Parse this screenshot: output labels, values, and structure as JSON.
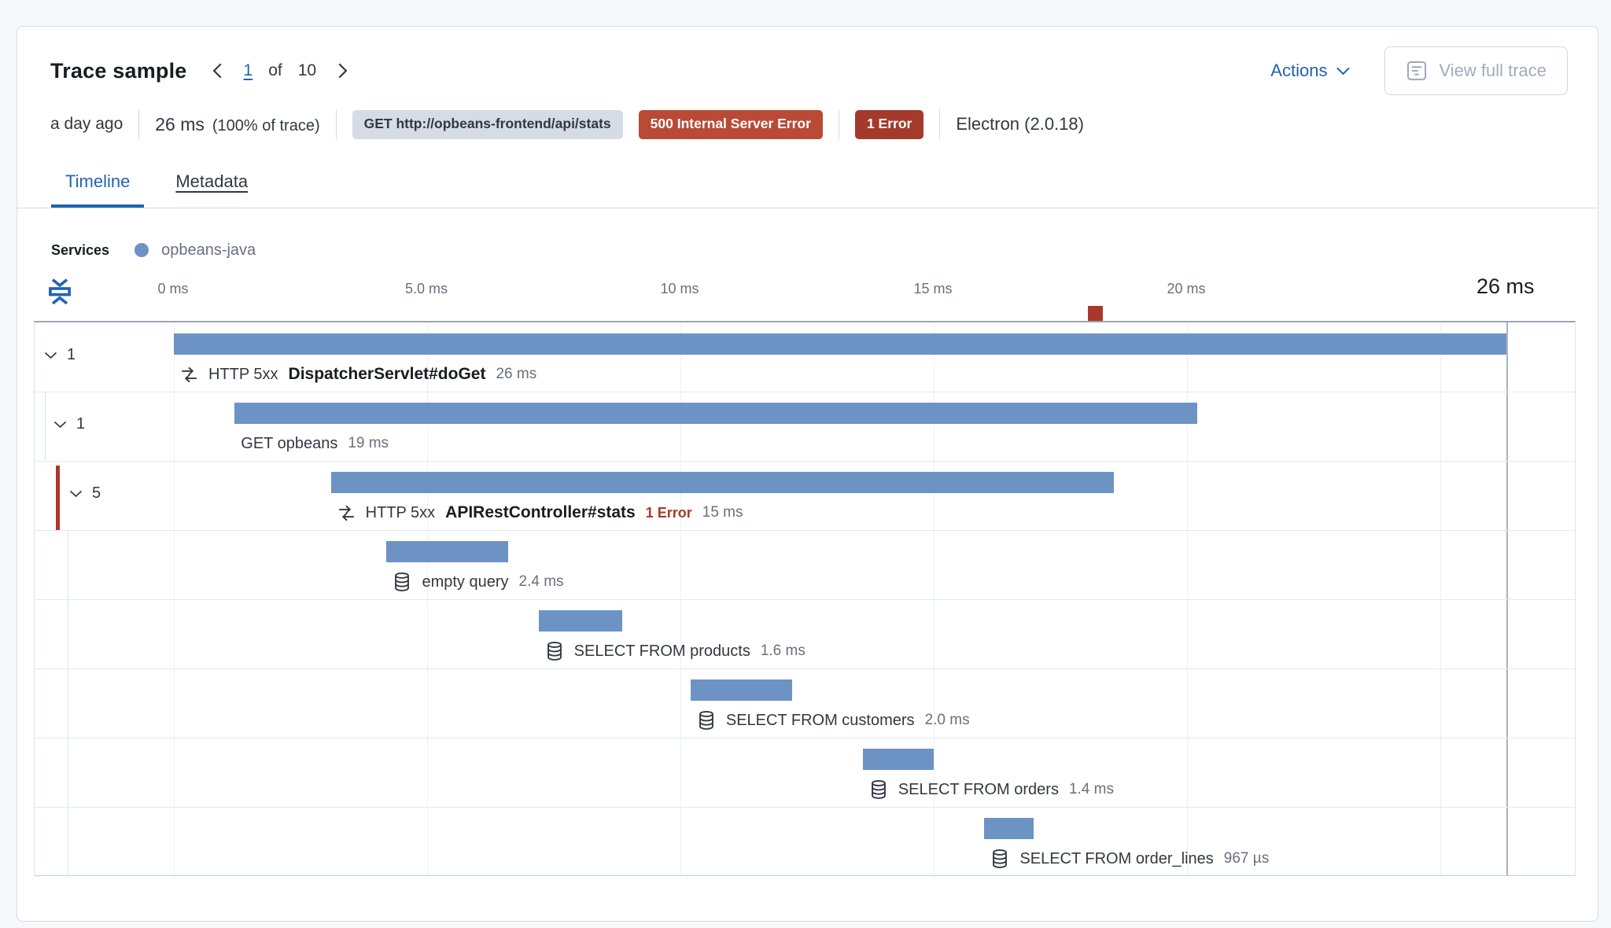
{
  "colors": {
    "accent": "#2263b1",
    "vis_blue": "#6d93c4",
    "badge_gray_bg": "#d6dce6",
    "badge_red": "#b84a36",
    "badge_dark_red": "#a5392c",
    "error_red": "#aa372b",
    "text": "#343741",
    "title": "#1a1c21",
    "subdued": "#69707d",
    "disabled": "#a2abba",
    "border": "#d3dae6",
    "separator": "#e4e9f0",
    "gridline": "#edf0f5",
    "chart_top_border": "#9aa5b6",
    "endline": "#aab3c1",
    "page_bg": "#f7f8fb"
  },
  "header": {
    "title": "Trace sample",
    "pager": {
      "page": "1",
      "of_label": "of",
      "total": "10"
    },
    "actions_label": "Actions",
    "view_full_trace_label": "View full trace"
  },
  "summary": {
    "time_ago": "a day ago",
    "duration": "26 ms",
    "duration_pct": "(100% of trace)",
    "url_badge": "GET http://opbeans-frontend/api/stats",
    "status_badge": "500 Internal Server Error",
    "error_badge": "1 Error",
    "agent": "Electron (2.0.18)"
  },
  "tabs": {
    "timeline": "Timeline",
    "metadata": "Metadata"
  },
  "legend": {
    "label": "Services",
    "service": "opbeans-java"
  },
  "chart_data": {
    "type": "waterfall",
    "unit": "ms",
    "axis_ticks": [
      {
        "ms": 0,
        "label": "0 ms"
      },
      {
        "ms": 5,
        "label": "5.0 ms"
      },
      {
        "ms": 10,
        "label": "10 ms"
      },
      {
        "ms": 15,
        "label": "15 ms"
      },
      {
        "ms": 20,
        "label": "20 ms"
      },
      {
        "ms": 25,
        "label": ""
      }
    ],
    "total_ms": 26.3,
    "total_label": "26 ms",
    "error_marker_ms": 18.2,
    "rows": [
      {
        "level": 0,
        "toggle": "1",
        "icon": "merge",
        "prefix": "HTTP 5xx",
        "name": "DispatcherServlet#doGet",
        "bold": true,
        "duration": "26 ms",
        "start_ms": 0,
        "duration_ms": 26.3
      },
      {
        "level": 1,
        "toggle": "1",
        "icon": null,
        "prefix": null,
        "name": "GET opbeans",
        "bold": false,
        "duration": "19 ms",
        "start_ms": 1.2,
        "duration_ms": 19.0
      },
      {
        "level": 2,
        "toggle": "5",
        "icon": "merge",
        "prefix": "HTTP 5xx",
        "name": "APIRestController#stats",
        "bold": true,
        "duration": "15 ms",
        "start_ms": 3.1,
        "duration_ms": 15.45,
        "error_label": "1 Error"
      },
      {
        "level": 3,
        "toggle": null,
        "icon": "database",
        "prefix": null,
        "name": "empty query",
        "bold": false,
        "duration": "2.4 ms",
        "start_ms": 4.2,
        "duration_ms": 2.4
      },
      {
        "level": 3,
        "toggle": null,
        "icon": "database",
        "prefix": null,
        "name": "SELECT FROM products",
        "bold": false,
        "duration": "1.6 ms",
        "start_ms": 7.2,
        "duration_ms": 1.65
      },
      {
        "level": 3,
        "toggle": null,
        "icon": "database",
        "prefix": null,
        "name": "SELECT FROM customers",
        "bold": false,
        "duration": "2.0 ms",
        "start_ms": 10.2,
        "duration_ms": 2.0
      },
      {
        "level": 3,
        "toggle": null,
        "icon": "database",
        "prefix": null,
        "name": "SELECT FROM orders",
        "bold": false,
        "duration": "1.4 ms",
        "start_ms": 13.6,
        "duration_ms": 1.4
      },
      {
        "level": 3,
        "toggle": null,
        "icon": "database",
        "prefix": null,
        "name": "SELECT FROM order_lines",
        "bold": false,
        "duration": "967 µs",
        "start_ms": 16.0,
        "duration_ms": 0.97
      }
    ]
  }
}
